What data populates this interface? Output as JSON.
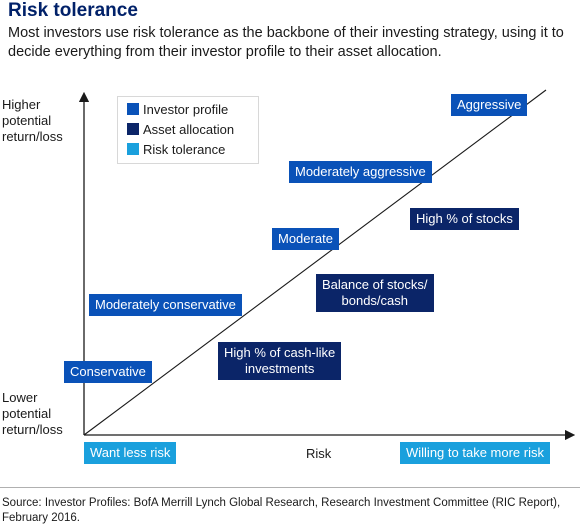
{
  "title": "Risk tolerance",
  "subtitle": "Most investors use risk tolerance as the backbone of their investing strategy, using it to decide everything from their investor profile to their asset allocation.",
  "y_axis": {
    "top_label": [
      "Higher",
      "potential",
      "return/loss"
    ],
    "bottom_label": [
      "Lower",
      "potential",
      "return/loss"
    ]
  },
  "x_axis": {
    "label": "Risk",
    "left_label": "Want less risk",
    "right_label": "Willing to take more risk"
  },
  "legend": [
    {
      "label": "Investor profile",
      "color": "#0a52b8"
    },
    {
      "label": "Asset allocation",
      "color": "#0b2568"
    },
    {
      "label": "Risk tolerance",
      "color": "#1aa0dd"
    }
  ],
  "investor_profiles": [
    "Conservative",
    "Moderately conservative",
    "Moderate",
    "Moderately aggressive",
    "Aggressive"
  ],
  "asset_allocations": [
    [
      "High % of cash-like",
      "investments"
    ],
    [
      "Balance of stocks/",
      "bonds/cash"
    ],
    [
      "High % of stocks"
    ]
  ],
  "source": "Source: Investor Profiles: BofA Merrill Lynch Global Research, Research Investment Committee (RIC Report), February 2016."
}
